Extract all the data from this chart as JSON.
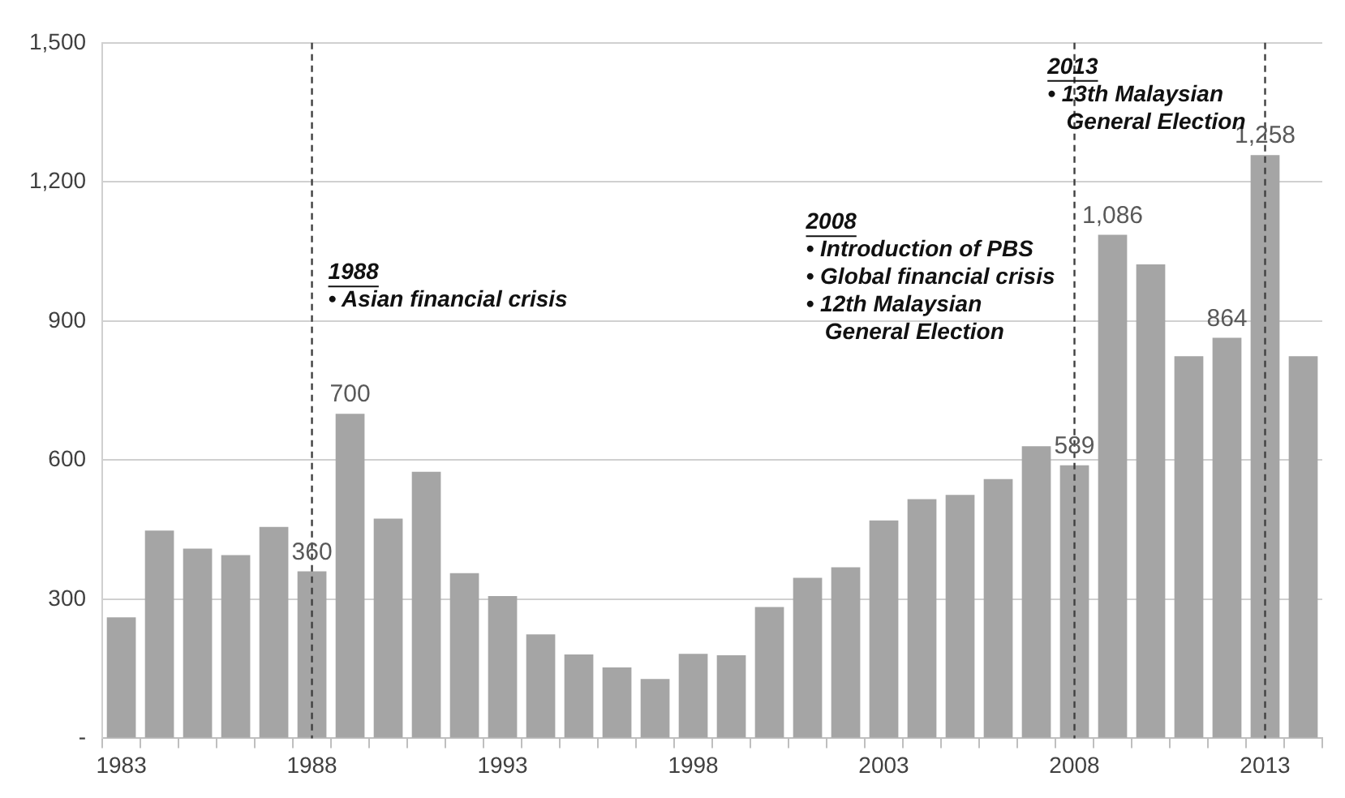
{
  "chart_data": {
    "type": "bar",
    "categories": [
      "1983",
      null,
      null,
      null,
      null,
      "1988",
      null,
      null,
      null,
      null,
      "1993",
      null,
      null,
      null,
      null,
      "1998",
      null,
      null,
      null,
      null,
      "2003",
      null,
      null,
      null,
      null,
      "2008",
      null,
      null,
      null,
      null,
      "2013",
      null
    ],
    "values": [
      261,
      448,
      409,
      395,
      456,
      360,
      700,
      474,
      575,
      356,
      307,
      224,
      181,
      153,
      128,
      182,
      179,
      283,
      346,
      369,
      470,
      516,
      525,
      559,
      630,
      589,
      1086,
      1022,
      824,
      864,
      1258,
      824
    ],
    "value_labels": [
      null,
      null,
      null,
      null,
      null,
      "360",
      "700",
      null,
      null,
      null,
      null,
      null,
      null,
      null,
      null,
      null,
      null,
      null,
      null,
      null,
      null,
      null,
      null,
      null,
      null,
      "589",
      "1,086",
      null,
      null,
      "864",
      "1,258",
      null
    ],
    "color": "#a5a5a5",
    "ylim": [
      0,
      1500
    ],
    "yticks": [
      {
        "value": 0,
        "label": "-"
      },
      {
        "value": 300,
        "label": "300"
      },
      {
        "value": 600,
        "label": "600"
      },
      {
        "value": 900,
        "label": "900"
      },
      {
        "value": 1200,
        "label": "1,200"
      },
      {
        "value": 1500,
        "label": "1,500"
      }
    ],
    "grid": "y",
    "ref_lines": [
      {
        "axis": "x",
        "value": "1988",
        "color": "#404040",
        "line_style": "dashed"
      },
      {
        "axis": "x",
        "value": "2008",
        "color": "#404040",
        "line_style": "dashed"
      },
      {
        "axis": "x",
        "value": "2013",
        "color": "#404040",
        "line_style": "dashed"
      }
    ],
    "annotations": [
      "1988\n• Asian financial crisis",
      "2008\n• Introduction of PBS\n• Global financial crisis\n• 12th Malaysian\n   General Election",
      "2013\n• 13th Malaysian\n   General Election"
    ]
  }
}
